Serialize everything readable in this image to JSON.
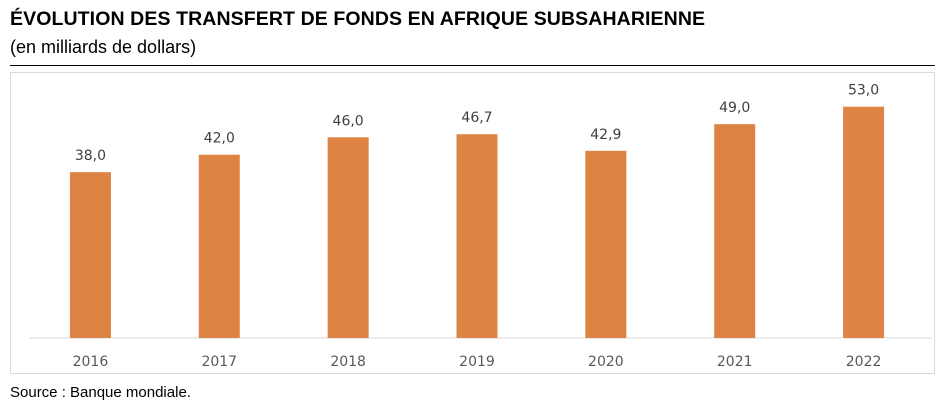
{
  "title": "ÉVOLUTION DES TRANSFERT DE FONDS EN AFRIQUE SUBSAHARIENNE",
  "subtitle": "(en milliards de dollars)",
  "source": "Source : Banque mondiale.",
  "colors": {
    "bar": "#dd8444",
    "axis": "#d9d9d9",
    "label_text": "#404040",
    "tick_text": "#595959"
  },
  "chart_data": {
    "type": "bar",
    "title": "ÉVOLUTION DES TRANSFERT DE FONDS EN AFRIQUE SUBSAHARIENNE",
    "subtitle": "(en milliards de dollars)",
    "categories": [
      "2016",
      "2017",
      "2018",
      "2019",
      "2020",
      "2021",
      "2022"
    ],
    "values": [
      38.0,
      42.0,
      46.0,
      46.7,
      42.9,
      49.0,
      53.0
    ],
    "value_labels": [
      "38,0",
      "42,0",
      "46,0",
      "46,7",
      "42,9",
      "49,0",
      "53,0"
    ],
    "xlabel": "",
    "ylabel": "",
    "ylim": [
      0,
      55
    ],
    "grid": false,
    "legend": "none",
    "data_labels": true
  }
}
